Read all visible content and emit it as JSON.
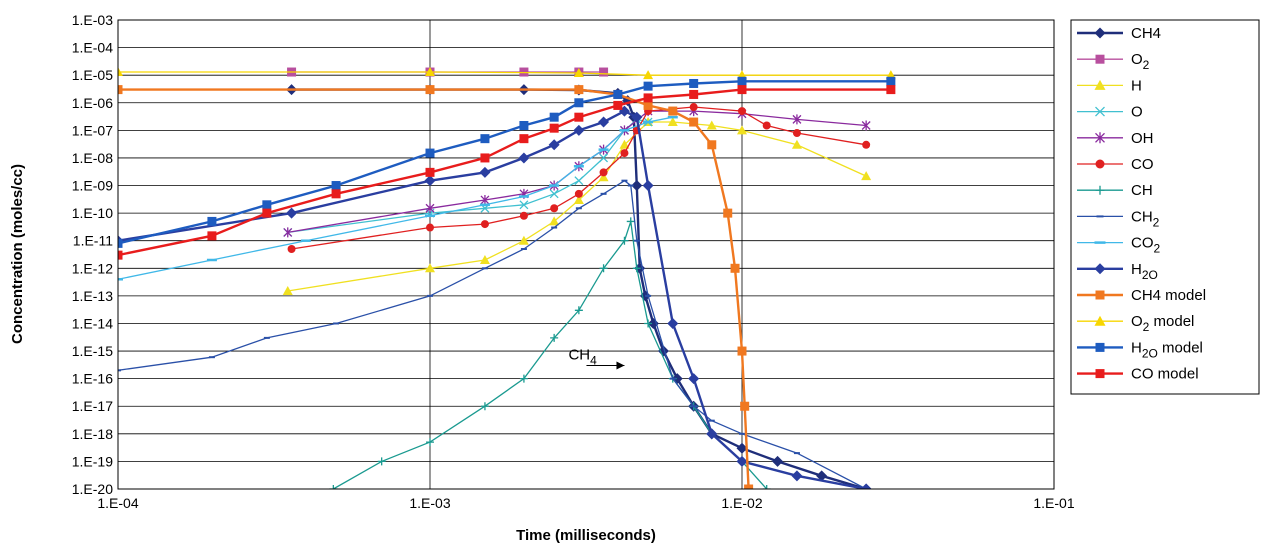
{
  "chart_data": {
    "type": "line",
    "title": "",
    "xlabel": "Time (milliseconds)",
    "ylabel": "Concentration (moles/cc)",
    "x_scale": "log",
    "y_scale": "log",
    "xlim": [
      0.0001,
      0.1
    ],
    "ylim": [
      1e-20,
      0.001
    ],
    "x_ticks": [
      "1.E-04",
      "1.E-03",
      "1.E-02",
      "1.E-01"
    ],
    "y_ticks": [
      "1.E-03",
      "1.E-04",
      "1.E-05",
      "1.E-06",
      "1.E-07",
      "1.E-08",
      "1.E-09",
      "1.E-10",
      "1.E-11",
      "1.E-12",
      "1.E-13",
      "1.E-14",
      "1.E-15",
      "1.E-16",
      "1.E-17",
      "1.E-18",
      "1.E-19",
      "1.E-20"
    ],
    "grid": true,
    "legend_position": "right",
    "annotation": {
      "text": "CH",
      "sub": "4",
      "x": 0.0042,
      "y": 3e-16
    },
    "series": [
      {
        "name": "CH4",
        "sub": "",
        "color": "#1f2e7a",
        "marker": "diamond",
        "points": [
          [
            0.00036,
            3e-06
          ],
          [
            0.001,
            3e-06
          ],
          [
            0.002,
            3e-06
          ],
          [
            0.003,
            2.9e-06
          ],
          [
            0.004,
            2.2e-06
          ],
          [
            0.0043,
            1.2e-06
          ],
          [
            0.0045,
            3e-07
          ],
          [
            0.0046,
            1e-09
          ],
          [
            0.0047,
            1e-12
          ],
          [
            0.0049,
            1e-13
          ],
          [
            0.0052,
            1e-14
          ],
          [
            0.0056,
            1e-15
          ],
          [
            0.0062,
            1e-16
          ],
          [
            0.007,
            1e-17
          ],
          [
            0.008,
            1e-18
          ],
          [
            0.01,
            3e-19
          ],
          [
            0.013,
            1e-19
          ],
          [
            0.018,
            3e-20
          ],
          [
            0.025,
            1e-20
          ]
        ]
      },
      {
        "name": "O",
        "sub": "2",
        "color": "#b84f9e",
        "marker": "square",
        "points": [
          [
            0.00036,
            1.3e-05
          ],
          [
            0.001,
            1.3e-05
          ],
          [
            0.002,
            1.3e-05
          ],
          [
            0.003,
            1.3e-05
          ],
          [
            0.0036,
            1.3e-05
          ]
        ]
      },
      {
        "name": "H",
        "sub": "",
        "color": "#f0e020",
        "marker": "triangle",
        "points": [
          [
            0.00035,
            1.5e-13
          ],
          [
            0.001,
            1e-12
          ],
          [
            0.0015,
            2e-12
          ],
          [
            0.002,
            1e-11
          ],
          [
            0.0025,
            5e-11
          ],
          [
            0.003,
            3e-10
          ],
          [
            0.0036,
            2e-09
          ],
          [
            0.0042,
            3e-08
          ],
          [
            0.005,
            2e-07
          ],
          [
            0.006,
            2e-07
          ],
          [
            0.008,
            1.5e-07
          ],
          [
            0.01,
            1e-07
          ],
          [
            0.015,
            3e-08
          ],
          [
            0.025,
            2.2e-09
          ]
        ]
      },
      {
        "name": "O",
        "sub": "",
        "color": "#40c0d0",
        "marker": "x",
        "points": [
          [
            0.00035,
            2e-11
          ],
          [
            0.001,
            1e-10
          ],
          [
            0.0015,
            1.5e-10
          ],
          [
            0.002,
            2e-10
          ],
          [
            0.0025,
            5e-10
          ],
          [
            0.003,
            1.5e-09
          ],
          [
            0.0036,
            1e-08
          ],
          [
            0.0042,
            1e-07
          ],
          [
            0.0046,
            2.5e-07
          ],
          [
            0.005,
            2e-07
          ]
        ]
      },
      {
        "name": "OH",
        "sub": "",
        "color": "#8a2a9e",
        "marker": "star",
        "points": [
          [
            0.00035,
            2e-11
          ],
          [
            0.001,
            1.5e-10
          ],
          [
            0.0015,
            3e-10
          ],
          [
            0.002,
            5e-10
          ],
          [
            0.0025,
            1e-09
          ],
          [
            0.003,
            5e-09
          ],
          [
            0.0036,
            2e-08
          ],
          [
            0.0042,
            1e-07
          ],
          [
            0.005,
            5e-07
          ],
          [
            0.007,
            5e-07
          ],
          [
            0.01,
            4e-07
          ],
          [
            0.015,
            2.5e-07
          ],
          [
            0.025,
            1.5e-07
          ]
        ]
      },
      {
        "name": "CO",
        "sub": "",
        "color": "#e02020",
        "marker": "circle",
        "points": [
          [
            0.00036,
            5e-12
          ],
          [
            0.001,
            3e-11
          ],
          [
            0.0015,
            4e-11
          ],
          [
            0.002,
            8e-11
          ],
          [
            0.0025,
            1.5e-10
          ],
          [
            0.003,
            5e-10
          ],
          [
            0.0036,
            3e-09
          ],
          [
            0.0042,
            1.5e-08
          ],
          [
            0.0046,
            1e-07
          ],
          [
            0.005,
            5e-07
          ],
          [
            0.007,
            7e-07
          ],
          [
            0.01,
            5e-07
          ],
          [
            0.012,
            1.5e-07
          ],
          [
            0.015,
            8e-08
          ],
          [
            0.025,
            3e-08
          ]
        ]
      },
      {
        "name": "CH",
        "sub": "",
        "color": "#1a9a90",
        "marker": "plus",
        "points": [
          [
            0.00049,
            1e-20
          ],
          [
            0.0007,
            1e-19
          ],
          [
            0.001,
            5e-19
          ],
          [
            0.0015,
            1e-17
          ],
          [
            0.002,
            1e-16
          ],
          [
            0.0025,
            3e-15
          ],
          [
            0.003,
            3e-14
          ],
          [
            0.0036,
            1e-12
          ],
          [
            0.0042,
            1e-11
          ],
          [
            0.0044,
            5e-11
          ],
          [
            0.0046,
            1e-12
          ],
          [
            0.005,
            1e-14
          ],
          [
            0.006,
            1e-16
          ],
          [
            0.007,
            1e-17
          ],
          [
            0.008,
            1e-18
          ],
          [
            0.01,
            1e-19
          ],
          [
            0.012,
            1e-20
          ]
        ]
      },
      {
        "name": "CH",
        "sub": "2",
        "color": "#2a50a8",
        "marker": "dash",
        "points": [
          [
            0.0001,
            2e-16
          ],
          [
            0.0002,
            6e-16
          ],
          [
            0.0003,
            3e-15
          ],
          [
            0.0005,
            1e-14
          ],
          [
            0.001,
            1e-13
          ],
          [
            0.0015,
            1e-12
          ],
          [
            0.002,
            5e-12
          ],
          [
            0.0025,
            3e-11
          ],
          [
            0.003,
            1.5e-10
          ],
          [
            0.0036,
            5e-10
          ],
          [
            0.0042,
            1.5e-09
          ],
          [
            0.0044,
            1e-09
          ],
          [
            0.0046,
            1e-11
          ],
          [
            0.005,
            1e-13
          ],
          [
            0.006,
            1e-16
          ],
          [
            0.007,
            1e-17
          ],
          [
            0.008,
            3e-18
          ],
          [
            0.01,
            1e-18
          ],
          [
            0.015,
            2e-19
          ],
          [
            0.025,
            1e-20
          ]
        ]
      },
      {
        "name": "CO",
        "sub": "2",
        "color": "#40b8e8",
        "marker": "hbar",
        "points": [
          [
            0.0001,
            4e-13
          ],
          [
            0.0002,
            2e-12
          ],
          [
            0.0004,
            1e-11
          ],
          [
            0.001,
            8e-11
          ],
          [
            0.0015,
            2e-10
          ],
          [
            0.002,
            4e-10
          ],
          [
            0.0025,
            1e-09
          ],
          [
            0.003,
            5e-09
          ],
          [
            0.0036,
            2e-08
          ],
          [
            0.0042,
            1e-07
          ],
          [
            0.005,
            2e-07
          ],
          [
            0.006,
            3e-07
          ]
        ]
      },
      {
        "name": "H",
        "sub": "2O",
        "color": "#2a3ea0",
        "marker": "diamond",
        "points": [
          [
            0.0001,
            1e-11
          ],
          [
            0.00036,
            1e-10
          ],
          [
            0.001,
            1.5e-09
          ],
          [
            0.0015,
            3e-09
          ],
          [
            0.002,
            1e-08
          ],
          [
            0.0025,
            3e-08
          ],
          [
            0.003,
            1e-07
          ],
          [
            0.0036,
            2e-07
          ],
          [
            0.0042,
            5e-07
          ],
          [
            0.0046,
            3e-07
          ],
          [
            0.005,
            1e-09
          ],
          [
            0.006,
            1e-14
          ],
          [
            0.007,
            1e-16
          ],
          [
            0.008,
            1e-18
          ],
          [
            0.01,
            1e-19
          ],
          [
            0.015,
            3e-20
          ],
          [
            0.025,
            1e-20
          ]
        ]
      },
      {
        "name": "CH4 model",
        "sub": "",
        "color": "#f07820",
        "marker": "square",
        "points": [
          [
            0.0001,
            3e-06
          ],
          [
            0.001,
            3e-06
          ],
          [
            0.003,
            3e-06
          ],
          [
            0.004,
            2e-06
          ],
          [
            0.005,
            8e-07
          ],
          [
            0.006,
            5e-07
          ],
          [
            0.007,
            2e-07
          ],
          [
            0.008,
            3e-08
          ],
          [
            0.009,
            1e-10
          ],
          [
            0.0095,
            1e-12
          ],
          [
            0.01,
            1e-15
          ],
          [
            0.0102,
            1e-17
          ],
          [
            0.0105,
            1e-20
          ]
        ]
      },
      {
        "name": "O",
        "sub": "2",
        "suffix": " model",
        "color": "#f7d600",
        "marker": "triangle",
        "points": [
          [
            0.0001,
            1.3e-05
          ],
          [
            0.001,
            1.3e-05
          ],
          [
            0.003,
            1.2e-05
          ],
          [
            0.005,
            1e-05
          ],
          [
            0.01,
            1e-05
          ],
          [
            0.03,
            1e-05
          ]
        ]
      },
      {
        "name": "H",
        "sub": "2O",
        "suffix": " model",
        "color": "#1e5cc0",
        "marker": "square",
        "points": [
          [
            0.0001,
            8e-12
          ],
          [
            0.0002,
            5e-11
          ],
          [
            0.0003,
            2e-10
          ],
          [
            0.0005,
            1e-09
          ],
          [
            0.001,
            1.5e-08
          ],
          [
            0.0015,
            5e-08
          ],
          [
            0.002,
            1.5e-07
          ],
          [
            0.0025,
            3e-07
          ],
          [
            0.003,
            1e-06
          ],
          [
            0.004,
            2e-06
          ],
          [
            0.005,
            4e-06
          ],
          [
            0.007,
            5e-06
          ],
          [
            0.01,
            6e-06
          ],
          [
            0.03,
            6e-06
          ]
        ]
      },
      {
        "name": "CO model",
        "sub": "",
        "color": "#e81c1c",
        "marker": "square",
        "points": [
          [
            0.0001,
            3e-12
          ],
          [
            0.0002,
            1.5e-11
          ],
          [
            0.0003,
            1e-10
          ],
          [
            0.0005,
            5e-10
          ],
          [
            0.001,
            3e-09
          ],
          [
            0.0015,
            1e-08
          ],
          [
            0.002,
            5e-08
          ],
          [
            0.0025,
            1.2e-07
          ],
          [
            0.003,
            3e-07
          ],
          [
            0.004,
            8e-07
          ],
          [
            0.005,
            1.5e-06
          ],
          [
            0.007,
            2e-06
          ],
          [
            0.01,
            3e-06
          ],
          [
            0.03,
            3e-06
          ]
        ]
      }
    ]
  }
}
